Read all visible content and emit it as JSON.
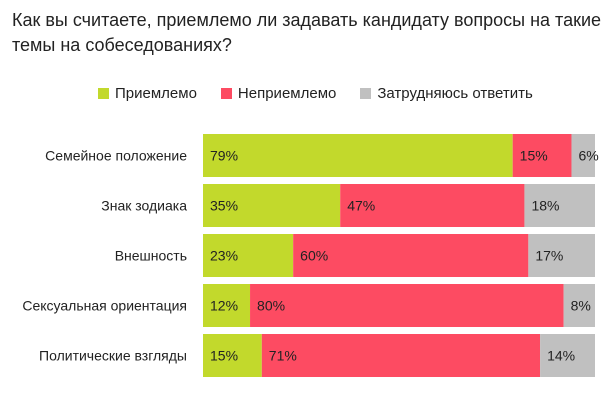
{
  "chart_data": {
    "type": "bar",
    "orientation": "horizontal",
    "stacked": true,
    "title": "Как вы считаете, приемлемо ли задавать кандидату вопросы на такие темы на собеседованиях?",
    "categories": [
      "Семейное положение",
      "Знак зодиака",
      "Внешность",
      "Сексуальная ориентация",
      "Политические взгляды"
    ],
    "series": [
      {
        "name": "Приемлемо",
        "color": "#c2d92c",
        "values": [
          79,
          35,
          23,
          12,
          15
        ]
      },
      {
        "name": "Неприемлемо",
        "color": "#fd4b62",
        "values": [
          15,
          47,
          60,
          80,
          71
        ]
      },
      {
        "name": "Затрудняюсь ответить",
        "color": "#c0c0c0",
        "values": [
          6,
          18,
          17,
          8,
          14
        ]
      }
    ],
    "value_suffix": "%",
    "xlim": [
      0,
      100
    ],
    "legend_position": "top",
    "grid": false
  }
}
